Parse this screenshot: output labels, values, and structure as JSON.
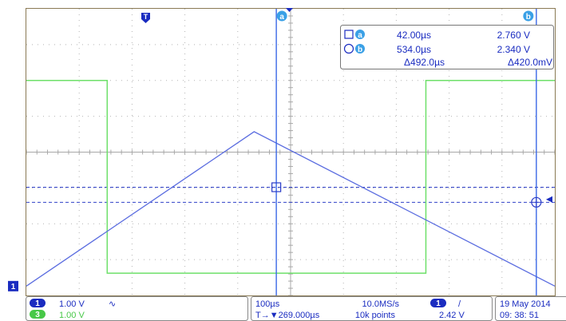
{
  "trigger_marker": {
    "label": "T"
  },
  "cursor_a": {
    "label": "a"
  },
  "cursor_b": {
    "label": "b"
  },
  "channel1_marker": {
    "label": "1"
  },
  "readout": {
    "row_a": {
      "time": "42.00µs",
      "volt": "2.760 V"
    },
    "row_b": {
      "time": "534.0µs",
      "volt": "2.340 V"
    },
    "row_delta": {
      "time": "Δ492.0µs",
      "volt": "Δ420.0mV"
    }
  },
  "status_bar": {
    "ch1": {
      "num": "1",
      "scale": "1.00 V",
      "coupling": "∿"
    },
    "ch3": {
      "num": "3",
      "scale": "1.00 V"
    },
    "timebase": "100µs",
    "trigger_position": "T→▼269.000µs",
    "sample_rate": "10.0MS/s",
    "record_length": "10k points",
    "trigger": {
      "source": "1",
      "slope": "/",
      "level": "2.42 V"
    },
    "date": "19 May  2014",
    "time": "09: 38: 51"
  },
  "colors": {
    "grid": "#9a9a9a",
    "frame": "#8a7a54",
    "ch1": "#5b6de0",
    "ch3": "#6ee06a",
    "cursor": "#3aa0e6",
    "badge": "#1a2cc0"
  },
  "chart_data": {
    "type": "line",
    "x_unit": "µs",
    "y_unit": "V",
    "xlim": [
      -431,
      569
    ],
    "ylim": [
      -0.26,
      7.74
    ],
    "series": [
      {
        "x": [
          -431,
          0,
          569
        ],
        "y": [
          0.0,
          4.31,
          0.0
        ]
      },
      {
        "x": [
          -431,
          -278,
          -278,
          325,
          325,
          569
        ],
        "y": [
          5.74,
          5.74,
          0.36,
          0.36,
          5.74,
          5.74
        ]
      }
    ],
    "cursors": {
      "a_time": 42.0,
      "b_time": 534.0,
      "a_volt": 2.76,
      "b_volt": 2.34
    },
    "trigger_level": 2.42
  }
}
